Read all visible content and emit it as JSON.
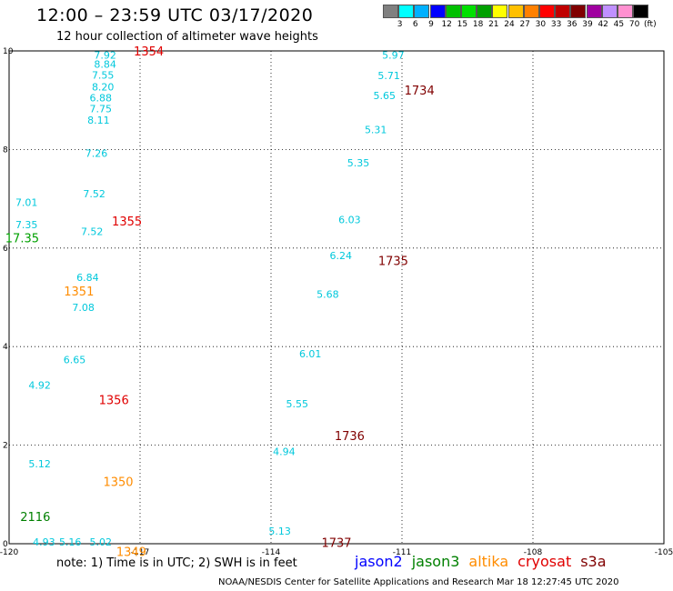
{
  "header": {
    "title": "12:00 – 23:59 UTC 03/17/2020",
    "subtitle": "12 hour collection of altimeter wave heights"
  },
  "colorbar": {
    "colors": [
      "#808080",
      "#00ffff",
      "#00b0ff",
      "#0000ff",
      "#00c000",
      "#00e000",
      "#00a000",
      "#ffff00",
      "#ffc000",
      "#ff8000",
      "#ff0000",
      "#c00000",
      "#800000",
      "#a000a0",
      "#c090ff",
      "#ff90d0",
      "#000000"
    ],
    "labels": [
      "3",
      "6",
      "9",
      "12",
      "15",
      "18",
      "21",
      "24",
      "27",
      "30",
      "33",
      "36",
      "39",
      "42",
      "45",
      "70",
      "(ft)"
    ]
  },
  "chart_data": {
    "type": "scatter",
    "xlim": [
      -120,
      -105
    ],
    "ylim": [
      0,
      10
    ],
    "x_ticks": [
      "-120",
      "-117",
      "-114",
      "-111",
      "-108",
      "-105"
    ],
    "y_ticks": [
      "0",
      "2",
      "4",
      "6",
      "8",
      "10"
    ],
    "grid": true,
    "value_color": "#00c8dc",
    "points": [
      {
        "x": -117.8,
        "y": 9.92,
        "label": "7.92"
      },
      {
        "x": -117.8,
        "y": 9.73,
        "label": "8.84"
      },
      {
        "x": -117.85,
        "y": 9.51,
        "label": "7.55"
      },
      {
        "x": -117.85,
        "y": 9.27,
        "label": "8.20"
      },
      {
        "x": -117.9,
        "y": 9.05,
        "label": "6.88"
      },
      {
        "x": -117.9,
        "y": 8.83,
        "label": "7.75"
      },
      {
        "x": -117.95,
        "y": 8.6,
        "label": "8.11"
      },
      {
        "x": -118.0,
        "y": 7.92,
        "label": "7.26"
      },
      {
        "x": -118.05,
        "y": 7.1,
        "label": "7.52"
      },
      {
        "x": -118.1,
        "y": 6.34,
        "label": "7.52"
      },
      {
        "x": -118.2,
        "y": 5.41,
        "label": "6.84"
      },
      {
        "x": -118.3,
        "y": 4.8,
        "label": "7.08"
      },
      {
        "x": -118.5,
        "y": 3.74,
        "label": "6.65"
      },
      {
        "x": -119.3,
        "y": 3.22,
        "label": "4.92"
      },
      {
        "x": -119.3,
        "y": 1.62,
        "label": "5.12"
      },
      {
        "x": -119.2,
        "y": 0.04,
        "label": "4.93"
      },
      {
        "x": -118.6,
        "y": 0.04,
        "label": "5.16"
      },
      {
        "x": -117.9,
        "y": 0.04,
        "label": "5.02"
      },
      {
        "x": -119.6,
        "y": 6.93,
        "label": "7.01"
      },
      {
        "x": -119.6,
        "y": 6.48,
        "label": "7.35"
      },
      {
        "x": -111.2,
        "y": 9.92,
        "label": "5.97"
      },
      {
        "x": -111.3,
        "y": 9.5,
        "label": "5.71"
      },
      {
        "x": -111.4,
        "y": 9.1,
        "label": "5.65"
      },
      {
        "x": -111.6,
        "y": 8.4,
        "label": "5.31"
      },
      {
        "x": -112.0,
        "y": 7.73,
        "label": "5.35"
      },
      {
        "x": -112.2,
        "y": 6.58,
        "label": "6.03"
      },
      {
        "x": -112.4,
        "y": 5.85,
        "label": "6.24"
      },
      {
        "x": -112.7,
        "y": 5.06,
        "label": "5.68"
      },
      {
        "x": -113.1,
        "y": 3.86,
        "label": "6.01"
      },
      {
        "x": -113.4,
        "y": 2.84,
        "label": "5.55"
      },
      {
        "x": -113.7,
        "y": 1.87,
        "label": "4.94"
      },
      {
        "x": -113.8,
        "y": 0.26,
        "label": "5.13"
      }
    ],
    "passes": [
      {
        "x": -116.8,
        "y": 10.0,
        "label": "1354",
        "color": "#e00000"
      },
      {
        "x": -117.3,
        "y": 6.55,
        "label": "1355",
        "color": "#e00000"
      },
      {
        "x": -117.6,
        "y": 2.92,
        "label": "1356",
        "color": "#e00000"
      },
      {
        "x": -118.4,
        "y": 5.13,
        "label": "1351",
        "color": "#ff8c00"
      },
      {
        "x": -117.5,
        "y": 1.26,
        "label": "1350",
        "color": "#ff8c00"
      },
      {
        "x": -117.2,
        "y": -0.16,
        "label": "1349",
        "color": "#ff8c00"
      },
      {
        "x": -119.4,
        "y": 0.55,
        "label": "2116",
        "color": "#008000"
      },
      {
        "x": -119.7,
        "y": 6.21,
        "label": "17.35",
        "color": "#00a000"
      },
      {
        "x": -110.6,
        "y": 9.21,
        "label": "1734",
        "color": "#800000"
      },
      {
        "x": -111.2,
        "y": 5.75,
        "label": "1735",
        "color": "#800000"
      },
      {
        "x": -112.2,
        "y": 2.2,
        "label": "1736",
        "color": "#800000"
      },
      {
        "x": -112.5,
        "y": 0.03,
        "label": "1737",
        "color": "#800000"
      }
    ]
  },
  "footer": {
    "note": "note:  1) Time is in UTC;  2) SWH is in feet",
    "satellites": [
      {
        "name": "jason2",
        "color": "#0000ff"
      },
      {
        "name": "jason3",
        "color": "#008000"
      },
      {
        "name": "altika",
        "color": "#ff8c00"
      },
      {
        "name": "cryosat",
        "color": "#e00000"
      },
      {
        "name": "s3a",
        "color": "#800000"
      }
    ],
    "credit": "NOAA/NESDIS Center for Satellite Applications and Research    Mar 18 12:27:45 UTC 2020"
  }
}
